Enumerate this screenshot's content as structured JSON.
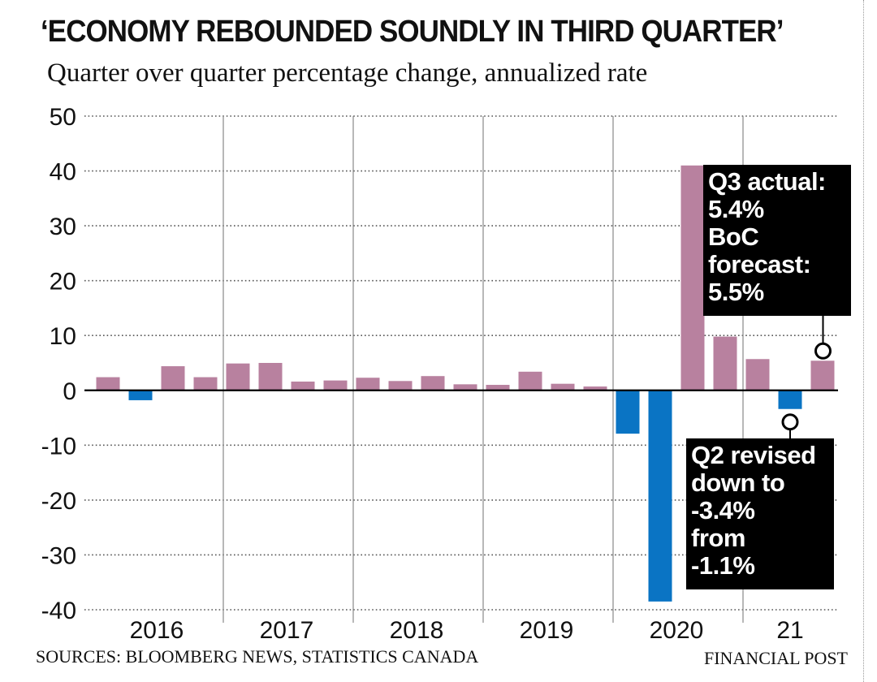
{
  "title": "‘ECONOMY REBOUNDED SOUNDLY IN THIRD QUARTER’",
  "subtitle": "Quarter over quarter percentage change, annualized rate",
  "source": "SOURCES: BLOOMBERG NEWS, STATISTICS CANADA",
  "credit": "FINANCIAL POST",
  "colors": {
    "positive": "#b8819f",
    "negative": "#0a74c4",
    "callout_bg": "#000000",
    "callout_text": "#ffffff"
  },
  "callouts": {
    "q3": {
      "lines": [
        "Q3 actual:",
        "5.4%",
        "BoC",
        "forecast:",
        "5.5%"
      ]
    },
    "q2": {
      "lines": [
        "Q2 revised",
        "down to",
        "-3.4%",
        "from",
        "-1.1%"
      ]
    }
  },
  "chart_data": {
    "type": "bar",
    "ylim": [
      -40,
      50
    ],
    "yticks": [
      50,
      40,
      30,
      20,
      10,
      0,
      -10,
      -20,
      -30,
      -40
    ],
    "grid": "horizontal dotted",
    "year_labels": [
      "2016",
      "2017",
      "2018",
      "2019",
      "2020",
      "21"
    ],
    "categories": [
      "2016 Q1",
      "2016 Q2",
      "2016 Q3",
      "2016 Q4",
      "2017 Q1",
      "2017 Q2",
      "2017 Q3",
      "2017 Q4",
      "2018 Q1",
      "2018 Q2",
      "2018 Q3",
      "2018 Q4",
      "2019 Q1",
      "2019 Q2",
      "2019 Q3",
      "2019 Q4",
      "2020 Q1",
      "2020 Q2",
      "2020 Q3",
      "2020 Q4",
      "2021 Q1",
      "2021 Q2",
      "2021 Q3"
    ],
    "values": [
      2.4,
      -1.8,
      4.4,
      2.4,
      4.9,
      5.0,
      1.6,
      1.8,
      2.3,
      1.7,
      2.6,
      1.1,
      1.0,
      3.4,
      1.2,
      0.7,
      -7.9,
      -38.5,
      41.0,
      9.8,
      5.7,
      -3.4,
      5.4
    ],
    "annotations": [
      "Q3 actual: 5.4% BoC forecast: 5.5%",
      "Q2 revised down to -3.4% from -1.1%"
    ]
  }
}
